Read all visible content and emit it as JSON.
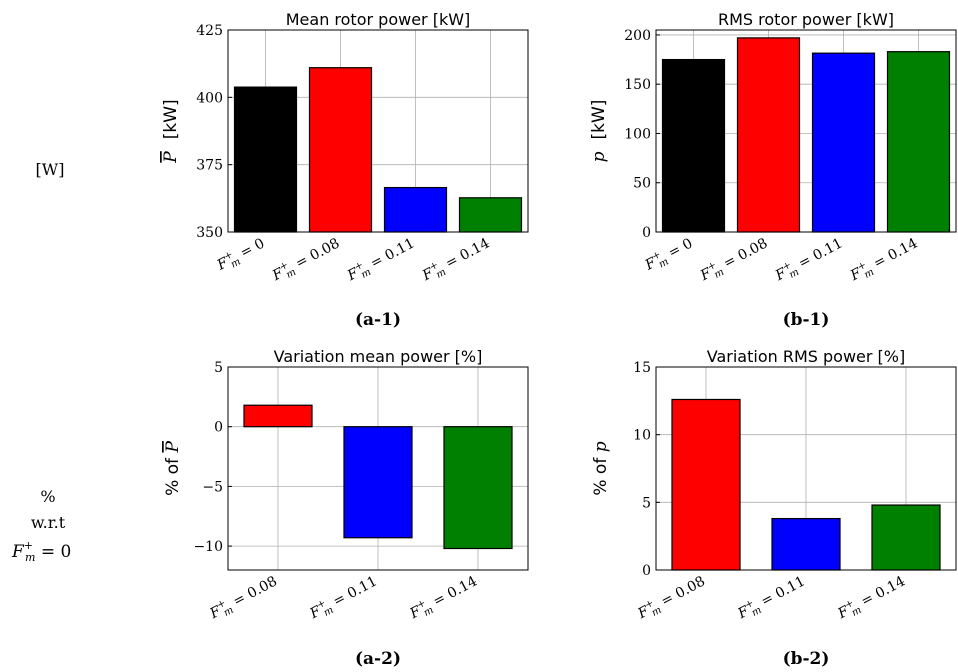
{
  "row_labels": {
    "row1": "[W]",
    "row2_line1": "%",
    "row2_line2": "w.r.t",
    "row2_line3": "F",
    "row2_line3_sup": "+",
    "row2_line3_sub": "m",
    "row2_line3_rest": " = 0"
  },
  "colors": {
    "F0": "#000000",
    "F008": "#ff0000",
    "F011": "#0000ff",
    "F014": "#008000",
    "grid": "#b0b0b0"
  },
  "chart_data": [
    {
      "id": "a1",
      "type": "bar",
      "title": "Mean rotor power [kW]",
      "ylabel_symbol": "P",
      "ylabel_unit": "[kW]",
      "panel_label": "(a-1)",
      "categories": [
        "0",
        "0.08",
        "0.11",
        "0.14"
      ],
      "category_colors": [
        "#000000",
        "#ff0000",
        "#0000ff",
        "#008000"
      ],
      "values": [
        403.8,
        411.0,
        366.5,
        362.7
      ],
      "ylim": [
        350,
        425
      ],
      "yticks": [
        "350",
        "375",
        "400",
        "425"
      ],
      "grid": true
    },
    {
      "id": "b1",
      "type": "bar",
      "title": "RMS rotor power [kW]",
      "ylabel_symbol": "p",
      "ylabel_unit": "[kW]",
      "panel_label": "(b-1)",
      "categories": [
        "0",
        "0.08",
        "0.11",
        "0.14"
      ],
      "category_colors": [
        "#000000",
        "#ff0000",
        "#0000ff",
        "#008000"
      ],
      "values": [
        175,
        197,
        181.5,
        183
      ],
      "ylim": [
        0,
        205
      ],
      "yticks": [
        "0",
        "50",
        "100",
        "150",
        "200"
      ],
      "grid": true
    },
    {
      "id": "a2",
      "type": "bar",
      "title": "Variation mean power [%]",
      "ylabel_prefix": "% of",
      "ylabel_symbol": "P",
      "panel_label": "(a-2)",
      "categories": [
        "0.08",
        "0.11",
        "0.14"
      ],
      "category_colors": [
        "#ff0000",
        "#0000ff",
        "#008000"
      ],
      "values": [
        1.8,
        -9.3,
        -10.2
      ],
      "ylim": [
        -12,
        5
      ],
      "yticks": [
        "−10",
        "−5",
        "0",
        "5"
      ],
      "grid": true
    },
    {
      "id": "b2",
      "type": "bar",
      "title": "Variation RMS power [%]",
      "ylabel_prefix": "% of",
      "ylabel_symbol": "p",
      "panel_label": "(b-2)",
      "categories": [
        "0.08",
        "0.11",
        "0.14"
      ],
      "category_colors": [
        "#ff0000",
        "#0000ff",
        "#008000"
      ],
      "values": [
        12.6,
        3.8,
        4.8
      ],
      "ylim": [
        0,
        15
      ],
      "yticks": [
        "0",
        "5",
        "10",
        "15"
      ],
      "grid": true
    }
  ],
  "xtick_prefix": "F",
  "xtick_sup": "+",
  "xtick_sub": "m",
  "xtick_eq": " = "
}
